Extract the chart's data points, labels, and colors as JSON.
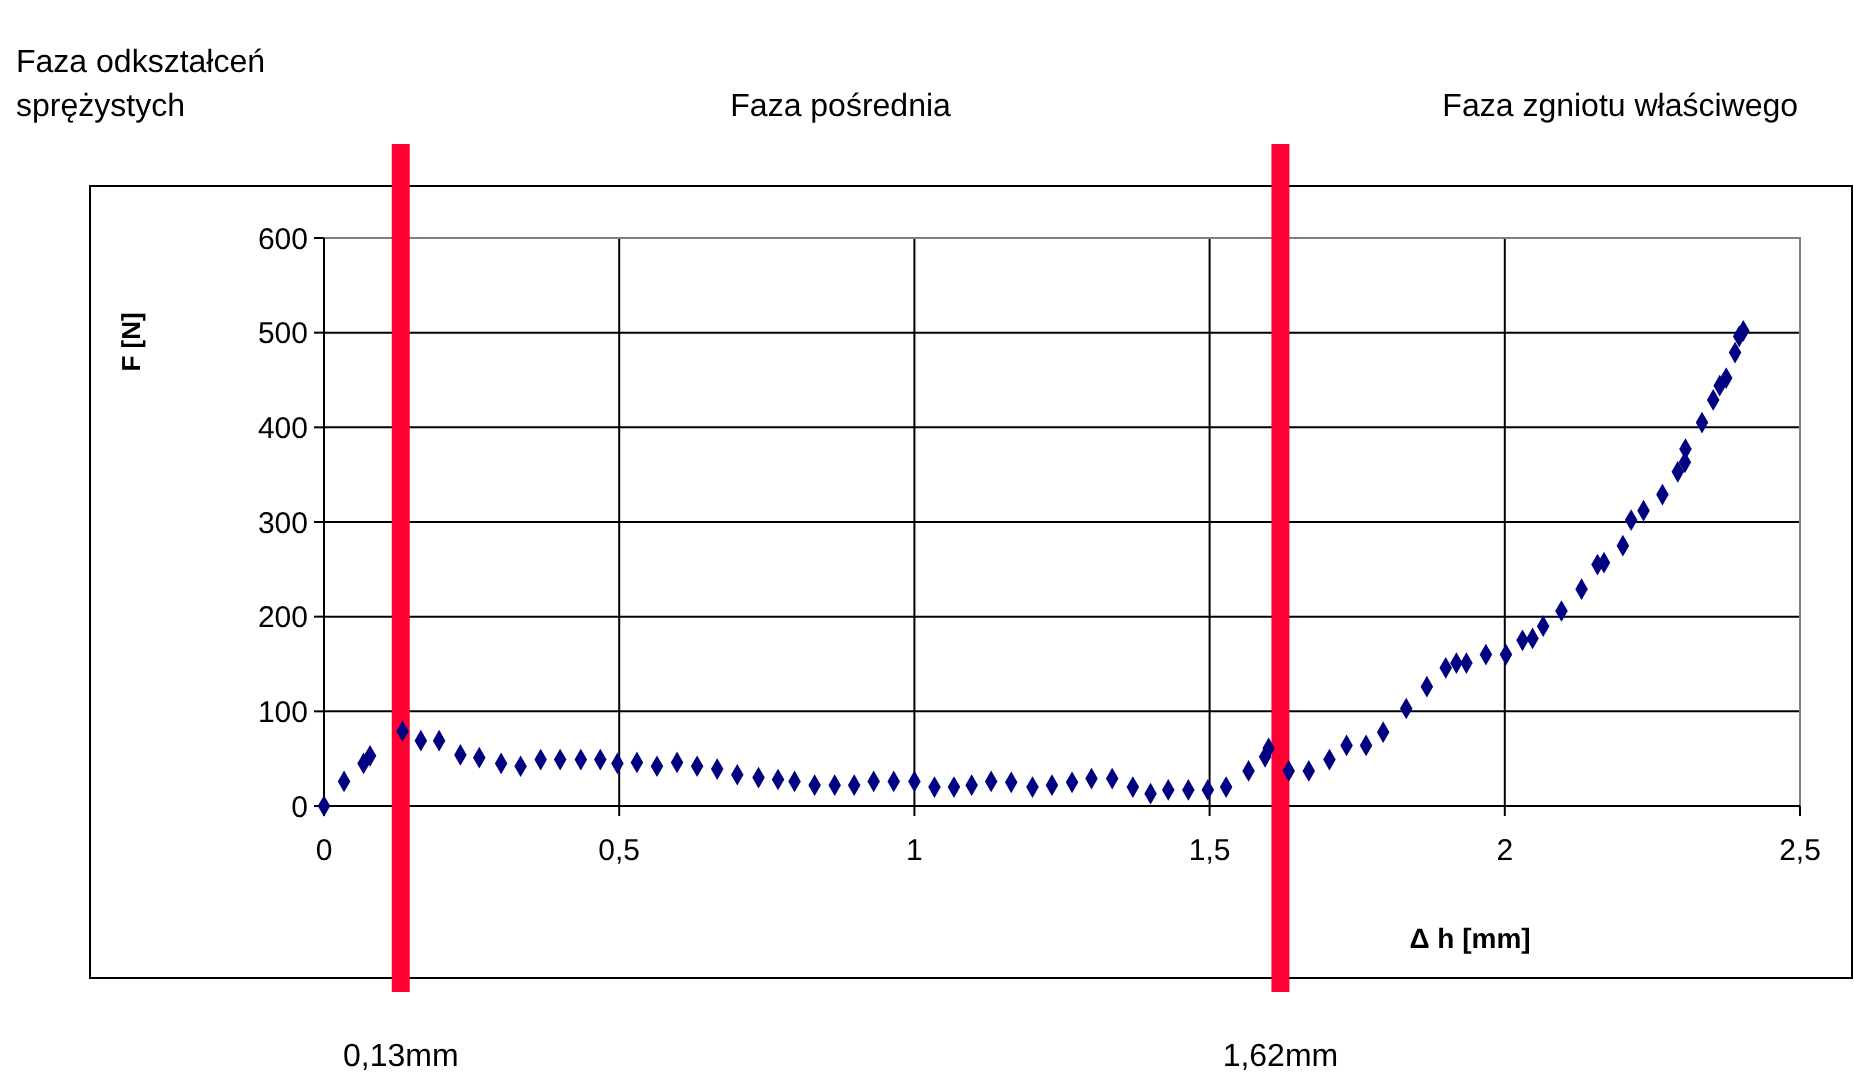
{
  "chart_data": {
    "type": "scatter",
    "xlabel": "Δ h [mm]",
    "ylabel": "F [N]",
    "xlim": [
      0,
      2.5
    ],
    "ylim": [
      0,
      600
    ],
    "xticks": [
      0,
      {
        "value": 0.5,
        "label": "0,5"
      },
      1,
      {
        "value": 1.5,
        "label": "1,5"
      },
      2,
      {
        "value": 2.5,
        "label": "2,5"
      }
    ],
    "yticks": [
      0,
      100,
      200,
      300,
      400,
      500,
      600
    ],
    "grid": true,
    "marker": "diamond",
    "ref_lines": [
      {
        "axis": "x",
        "value": 0.13,
        "label": "0,13mm",
        "color": "#ff0033"
      },
      {
        "axis": "x",
        "value": 1.62,
        "label": "1,62mm",
        "color": "#ff0033"
      }
    ],
    "annotations": [
      "Faza odkształceń sprężystych",
      "Faza pośrednia",
      "Faza zgniotu właściwego"
    ],
    "series": [
      {
        "color": "#000080",
        "x": [
          0,
          0.034,
          0.067,
          0.078,
          0.133,
          0.164,
          0.195,
          0.231,
          0.263,
          0.3,
          0.333,
          0.367,
          0.4,
          0.435,
          0.468,
          0.497,
          0.53,
          0.564,
          0.598,
          0.632,
          0.666,
          0.7,
          0.736,
          0.769,
          0.797,
          0.831,
          0.865,
          0.898,
          0.931,
          0.965,
          1.0,
          1.034,
          1.067,
          1.097,
          1.13,
          1.164,
          1.2,
          1.233,
          1.267,
          1.3,
          1.335,
          1.37,
          1.4,
          1.43,
          1.464,
          1.497,
          1.528,
          1.566,
          1.594,
          1.6,
          1.634,
          1.668,
          1.703,
          1.732,
          1.765,
          1.794,
          1.833,
          1.868,
          1.9,
          1.918,
          1.935,
          1.968,
          2.002,
          2.03,
          2.047,
          2.065,
          2.096,
          2.13,
          2.157,
          2.168,
          2.2,
          2.214,
          2.235,
          2.267,
          2.293,
          2.305,
          2.306,
          2.334,
          2.353,
          2.364,
          2.375,
          2.39,
          2.397,
          2.404
        ],
        "values": [
          0,
          26,
          45,
          53,
          79,
          69,
          69,
          54,
          51,
          45,
          42,
          49,
          49,
          49,
          49,
          45,
          46,
          42,
          46,
          42,
          39,
          33,
          30,
          28,
          26,
          22,
          22,
          22,
          26,
          26,
          26,
          20,
          20,
          22,
          26,
          25,
          20,
          22,
          25,
          29,
          29,
          20,
          13,
          17,
          17,
          17,
          20,
          37,
          52,
          61,
          37,
          37,
          49,
          64,
          64,
          78,
          103,
          126,
          146,
          151,
          151,
          160,
          160,
          175,
          177,
          190,
          206,
          229,
          255,
          257,
          275,
          302,
          312,
          329,
          353,
          363,
          377,
          405,
          429,
          444,
          452,
          479,
          496,
          502
        ]
      }
    ]
  }
}
